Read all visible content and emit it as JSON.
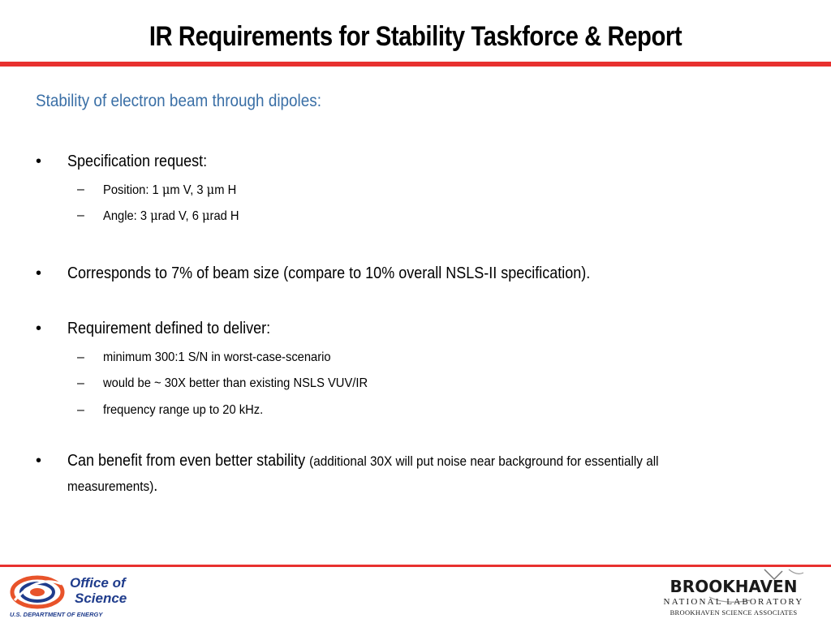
{
  "title": "IR Requirements for Stability Taskforce & Report",
  "subtitle": "Stability of electron beam through dipoles:",
  "bullets": [
    {
      "text": "Specification request:",
      "sub": [
        {
          "pre": "Position: 1 ",
          "mu1": "μ",
          "mid": "m V, 3 ",
          "mu2": "μ",
          "post": "m H"
        },
        {
          "pre": "Angle: 3 ",
          "mu1": "μ",
          "mid": "rad V, 6 ",
          "mu2": "μ",
          "post": "rad H"
        }
      ]
    },
    {
      "text": "Corresponds to 7% of beam size (compare to 10% overall NSLS-II specification)."
    },
    {
      "text": "Requirement defined to deliver:",
      "sub": [
        {
          "text": "minimum 300:1 S/N in worst-case-scenario"
        },
        {
          "text": "would be ~ 30X better than existing NSLS VUV/IR"
        },
        {
          "text": "frequency range up to 20 kHz."
        }
      ]
    },
    {
      "text": "Can benefit from even better stability ",
      "small": "(additional 30X will put noise near background for essentially all measurements)",
      "end": "."
    }
  ],
  "bullet_symbol": "•",
  "dash_symbol": "–",
  "footer": {
    "oos_line1": "Office of",
    "oos_line2": "Science",
    "oos_line3": "U.S. DEPARTMENT OF ENERGY",
    "bnl_line1": "BROOKHAVEN",
    "bnl_line2": "NATIONAL LABORATORY",
    "bnl_line3": "BROOKHAVEN SCIENCE ASSOCIATES"
  },
  "colors": {
    "accent_red": "#e8312f",
    "subtitle_blue": "#3a6fa6",
    "oos_blue": "#1f3c8c",
    "oos_orange": "#e8532a"
  }
}
